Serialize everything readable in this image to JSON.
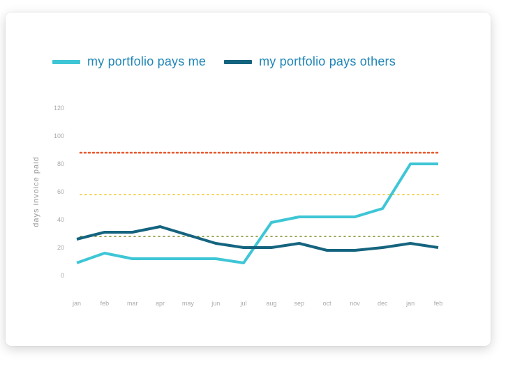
{
  "chart_data": {
    "type": "line",
    "legend_position": "top-left",
    "grid": false,
    "ylabel": "days invoice paid",
    "xlabel": "",
    "ylim": [
      0,
      120
    ],
    "y_ticks": [
      0,
      20,
      40,
      60,
      80,
      100,
      120
    ],
    "categories": [
      "jan",
      "feb",
      "mar",
      "apr",
      "may",
      "jun",
      "jul",
      "aug",
      "sep",
      "oct",
      "nov",
      "dec",
      "jan",
      "feb"
    ],
    "series": [
      {
        "name": "my portfolio pays me",
        "color": "#3ec6d6",
        "values": [
          9,
          16,
          12,
          12,
          12,
          12,
          9,
          38,
          42,
          42,
          42,
          48,
          80,
          80
        ]
      },
      {
        "name": "my portfolio pays others",
        "color": "#15647f",
        "values": [
          26,
          31,
          31,
          35,
          29,
          23,
          20,
          20,
          23,
          18,
          18,
          20,
          23,
          20
        ]
      }
    ],
    "reference_lines": [
      {
        "value": 88,
        "color": "#e8562a"
      },
      {
        "value": 58,
        "color": "#f2c218"
      },
      {
        "value": 28,
        "color": "#7b8b22"
      }
    ]
  }
}
